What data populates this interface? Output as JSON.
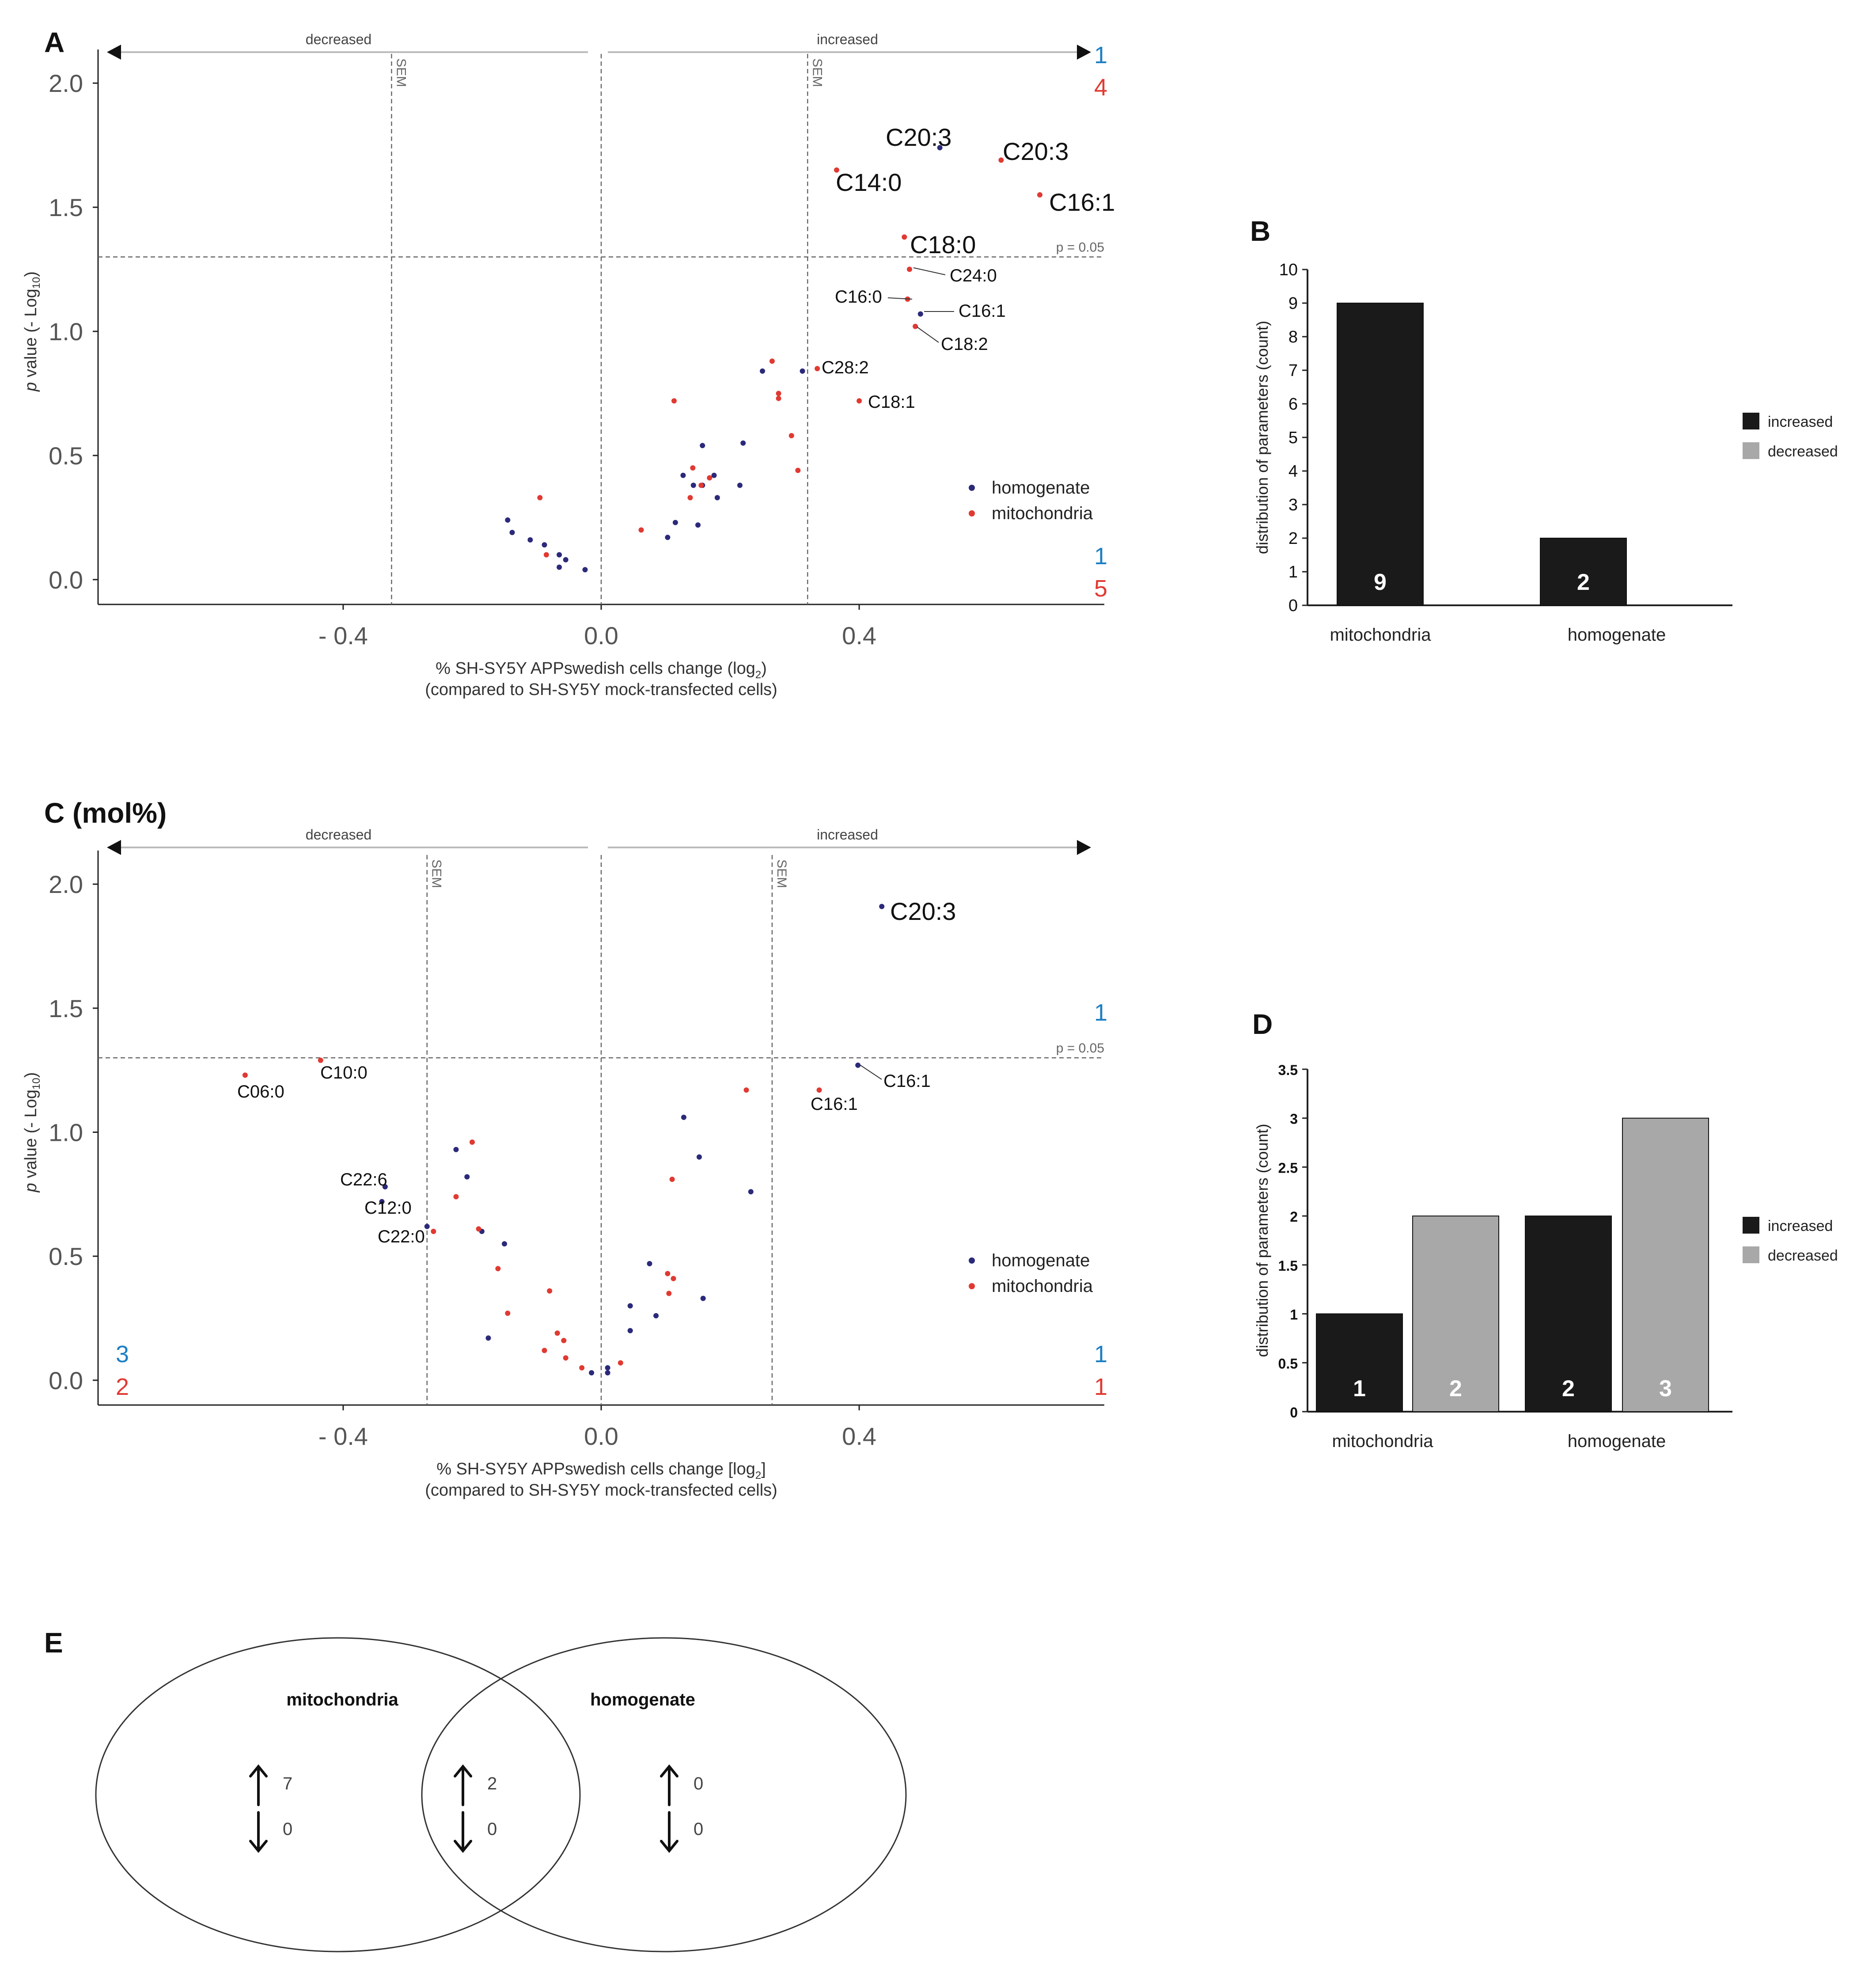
{
  "colors": {
    "homogenate": "#2b2a7a",
    "mitochondria": "#e03a32",
    "blue_count": "#1e7fc4",
    "red_count": "#e03a32",
    "increased_bar": "#1a1a1a",
    "decreased_bar": "#a8a8a8",
    "axis": "#222222",
    "guide": "#666666"
  },
  "chart_data": [
    {
      "type": "scatter",
      "panel_label": "A",
      "xlabel_line1": "% SH-SY5Y APPswedish cells change (log",
      "xlabel_sub": "2",
      "xlabel_close": ")",
      "xlabel_line2": "(compared to SH-SY5Y mock-transfected cells)",
      "ylabel_main": "p value (- Log",
      "ylabel_sub": "10",
      "ylabel_close": ")",
      "xlim": [
        -0.78,
        0.78
      ],
      "ylim": [
        -0.1,
        2.1
      ],
      "xticks": [
        -0.4,
        0.0,
        0.4
      ],
      "xtick_labels": [
        "- 0.4",
        "0.0",
        "0.4"
      ],
      "yticks": [
        0.0,
        0.5,
        1.0,
        1.5,
        2.0
      ],
      "ytick_labels": [
        "0.0",
        "0.5",
        "1.0",
        "1.5",
        "2.0"
      ],
      "sem_lines": [
        -0.325,
        0.32
      ],
      "sem_label": "SEM",
      "threshold": {
        "y": 1.3,
        "label": "p = 0.05"
      },
      "direction_left": "decreased",
      "direction_right": "increased",
      "counts": {
        "top_right_blue": "1",
        "top_right_red": "4",
        "bottom_right_blue": "1",
        "bottom_right_red": "5"
      },
      "legend": [
        "homogenate",
        "mitochondria"
      ],
      "series": [
        {
          "name": "homogenate",
          "points": [
            [
              0.525,
              1.74
            ],
            [
              0.495,
              1.07
            ],
            [
              0.312,
              0.84
            ],
            [
              0.25,
              0.84
            ],
            [
              0.22,
              0.55
            ],
            [
              0.157,
              0.54
            ],
            [
              0.175,
              0.42
            ],
            [
              0.127,
              0.42
            ],
            [
              0.143,
              0.38
            ],
            [
              0.157,
              0.38
            ],
            [
              0.215,
              0.38
            ],
            [
              0.18,
              0.33
            ],
            [
              0.115,
              0.23
            ],
            [
              0.15,
              0.22
            ],
            [
              0.103,
              0.17
            ],
            [
              -0.145,
              0.24
            ],
            [
              -0.138,
              0.19
            ],
            [
              -0.11,
              0.16
            ],
            [
              -0.088,
              0.14
            ],
            [
              -0.065,
              0.1
            ],
            [
              -0.055,
              0.08
            ],
            [
              -0.065,
              0.05
            ],
            [
              -0.025,
              0.04
            ]
          ]
        },
        {
          "name": "mitochondria",
          "points": [
            [
              0.62,
              1.69
            ],
            [
              0.68,
              1.55
            ],
            [
              0.365,
              1.65
            ],
            [
              0.47,
              1.38
            ],
            [
              0.478,
              1.25
            ],
            [
              0.475,
              1.13
            ],
            [
              0.487,
              1.02
            ],
            [
              0.335,
              0.85
            ],
            [
              0.265,
              0.88
            ],
            [
              0.275,
              0.75
            ],
            [
              0.275,
              0.73
            ],
            [
              0.4,
              0.72
            ],
            [
              0.113,
              0.72
            ],
            [
              0.295,
              0.58
            ],
            [
              0.142,
              0.45
            ],
            [
              0.305,
              0.44
            ],
            [
              0.168,
              0.41
            ],
            [
              0.155,
              0.38
            ],
            [
              0.138,
              0.33
            ],
            [
              -0.095,
              0.33
            ],
            [
              -0.085,
              0.1
            ],
            [
              0.062,
              0.2
            ]
          ]
        }
      ],
      "annotations": [
        {
          "text": "C20:3",
          "size": "large"
        },
        {
          "text": "C20:3",
          "size": "large"
        },
        {
          "text": "C14:0",
          "size": "large"
        },
        {
          "text": "C16:1",
          "size": "large"
        },
        {
          "text": "C18:0",
          "size": "large"
        },
        {
          "text": "C24:0",
          "size": "small"
        },
        {
          "text": "C16:0",
          "size": "small"
        },
        {
          "text": "C16:1",
          "size": "small"
        },
        {
          "text": "C18:2",
          "size": "small"
        },
        {
          "text": "C28:2",
          "size": "small"
        },
        {
          "text": "C18:1",
          "size": "small"
        }
      ]
    },
    {
      "type": "bar",
      "panel_label": "B",
      "ylabel": "distribution of parameters (count)",
      "ylim": [
        0,
        10
      ],
      "ytick_labels": [
        "0",
        "1",
        "2",
        "3",
        "4",
        "5",
        "6",
        "7",
        "8",
        "9",
        "10"
      ],
      "categories": [
        "mitochondria",
        "homogenate"
      ],
      "series": [
        {
          "name": "increased",
          "values": [
            9,
            2
          ]
        },
        {
          "name": "decreased",
          "values": [
            0,
            0
          ]
        }
      ],
      "bar_labels": [
        "9",
        "2"
      ],
      "legend": [
        "increased",
        "decreased"
      ]
    },
    {
      "type": "scatter",
      "panel_label": "C (mol%)",
      "xlabel_line1": "% SH-SY5Y APPswedish cells change [log",
      "xlabel_sub": "2",
      "xlabel_close": "]",
      "xlabel_line2": "(compared to SH-SY5Y mock-transfected cells)",
      "ylabel_main": "p value (- Log",
      "ylabel_sub": "10",
      "ylabel_close": ")",
      "xlim": [
        -0.78,
        0.78
      ],
      "ylim": [
        -0.1,
        2.1
      ],
      "xticks": [
        -0.4,
        0.0,
        0.4
      ],
      "xtick_labels": [
        "- 0.4",
        "0.0",
        "0.4"
      ],
      "yticks": [
        0.0,
        0.5,
        1.0,
        1.5,
        2.0
      ],
      "ytick_labels": [
        "0.0",
        "0.5",
        "1.0",
        "1.5",
        "2.0"
      ],
      "sem_lines": [
        -0.27,
        0.265
      ],
      "sem_label": "SEM",
      "threshold": {
        "y": 1.3,
        "label": "p = 0.05"
      },
      "direction_left": "decreased",
      "direction_right": "increased",
      "counts": {
        "top_right_blue": "1",
        "bottom_right_blue": "1",
        "bottom_right_red": "1",
        "bottom_left_blue": "3",
        "bottom_left_red": "2"
      },
      "legend": [
        "homogenate",
        "mitochondria"
      ],
      "series": [
        {
          "name": "homogenate",
          "points": [
            [
              0.435,
              1.91
            ],
            [
              0.398,
              1.27
            ],
            [
              0.128,
              1.06
            ],
            [
              0.152,
              0.9
            ],
            [
              0.232,
              0.76
            ],
            [
              -0.225,
              0.93
            ],
            [
              -0.208,
              0.82
            ],
            [
              -0.335,
              0.78
            ],
            [
              -0.34,
              0.72
            ],
            [
              -0.27,
              0.62
            ],
            [
              -0.185,
              0.6
            ],
            [
              -0.15,
              0.55
            ],
            [
              0.075,
              0.47
            ],
            [
              0.158,
              0.33
            ],
            [
              0.045,
              0.3
            ],
            [
              0.085,
              0.26
            ],
            [
              0.045,
              0.2
            ],
            [
              -0.175,
              0.17
            ],
            [
              0.01,
              0.05
            ],
            [
              0.01,
              0.03
            ],
            [
              -0.015,
              0.03
            ]
          ]
        },
        {
          "name": "mitochondria",
          "points": [
            [
              -0.552,
              1.23
            ],
            [
              -0.435,
              1.29
            ],
            [
              0.338,
              1.17
            ],
            [
              0.225,
              1.17
            ],
            [
              -0.2,
              0.96
            ],
            [
              -0.225,
              0.74
            ],
            [
              0.11,
              0.81
            ],
            [
              -0.26,
              0.6
            ],
            [
              -0.19,
              0.61
            ],
            [
              -0.16,
              0.45
            ],
            [
              -0.08,
              0.36
            ],
            [
              0.103,
              0.43
            ],
            [
              0.112,
              0.41
            ],
            [
              0.105,
              0.35
            ],
            [
              -0.145,
              0.27
            ],
            [
              -0.068,
              0.19
            ],
            [
              -0.058,
              0.16
            ],
            [
              -0.088,
              0.12
            ],
            [
              -0.055,
              0.09
            ],
            [
              -0.03,
              0.05
            ],
            [
              0.03,
              0.07
            ]
          ]
        }
      ],
      "annotations": [
        {
          "text": "C20:3",
          "size": "large"
        },
        {
          "text": "C16:1",
          "size": "small"
        },
        {
          "text": "C16:1",
          "size": "small"
        },
        {
          "text": "C10:0",
          "size": "small"
        },
        {
          "text": "C06:0",
          "size": "small"
        },
        {
          "text": "C22:6",
          "size": "small"
        },
        {
          "text": "C12:0",
          "size": "small"
        },
        {
          "text": "C22:0",
          "size": "small"
        }
      ]
    },
    {
      "type": "bar",
      "panel_label": "D",
      "ylabel": "distribution of parameters (count)",
      "ylim": [
        0,
        3.5
      ],
      "ytick_labels": [
        "0",
        "0.5",
        "1",
        "1.5",
        "2",
        "2.5",
        "3",
        "3.5"
      ],
      "categories": [
        "mitochondria",
        "homogenate"
      ],
      "series": [
        {
          "name": "increased",
          "values": [
            1,
            2
          ]
        },
        {
          "name": "decreased",
          "values": [
            2,
            3
          ]
        }
      ],
      "bar_labels": [
        "1",
        "2",
        "2",
        "3"
      ],
      "legend": [
        "increased",
        "decreased"
      ]
    }
  ],
  "venn": {
    "panel_label": "E",
    "left_title": "mitochondria",
    "right_title": "homogenate",
    "left_up": "7",
    "left_down": "0",
    "mid_up": "2",
    "mid_down": "0",
    "right_up": "0",
    "right_down": "0"
  }
}
